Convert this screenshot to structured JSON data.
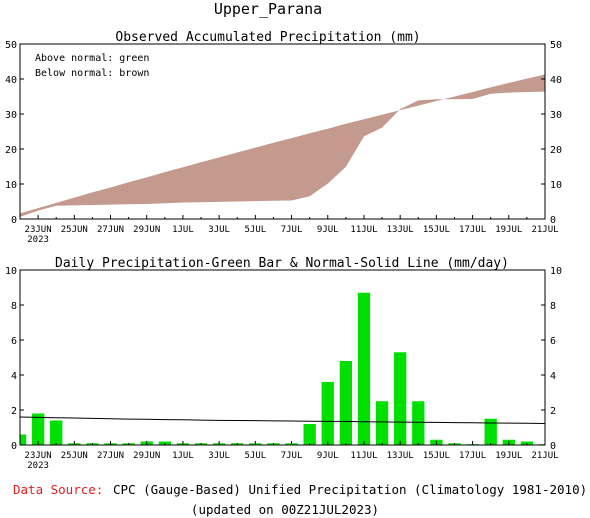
{
  "title": "Upper_Parana",
  "footer": {
    "source_label": "Data Source:",
    "source_text": "CPC (Gauge-Based) Unified Precipitation (Climatology 1981-2010)",
    "updated": "(updated on 00Z21JUL2023)"
  },
  "colors": {
    "shade": "#c49a8e",
    "bar": "#00e000",
    "source_label": "#e02020"
  },
  "x_axis": {
    "start_date": "2023-06-22",
    "tick_labels": [
      "23JUN",
      "25JUN",
      "27JUN",
      "29JUN",
      "1JUL",
      "3JUL",
      "5JUL",
      "7JUL",
      "9JUL",
      "11JUL",
      "13JUL",
      "15JUL",
      "17JUL",
      "19JUL",
      "21JUL"
    ],
    "year_label": "2023"
  },
  "chart_data": [
    {
      "type": "area",
      "title": "Observed Accumulated Precipitation (mm)",
      "legend": [
        "Above normal: green",
        "Below normal: brown"
      ],
      "ylim": [
        0,
        50
      ],
      "yticks": [
        0,
        10,
        20,
        30,
        40,
        50
      ],
      "x": [
        "22JUN",
        "23JUN",
        "24JUN",
        "25JUN",
        "26JUN",
        "27JUN",
        "28JUN",
        "29JUN",
        "30JUN",
        "1JUL",
        "2JUL",
        "3JUL",
        "4JUL",
        "5JUL",
        "6JUL",
        "7JUL",
        "8JUL",
        "9JUL",
        "10JUL",
        "11JUL",
        "12JUL",
        "13JUL",
        "14JUL",
        "15JUL",
        "16JUL",
        "17JUL",
        "18JUL",
        "19JUL",
        "20JUL",
        "21JUL"
      ],
      "series": [
        {
          "name": "observed",
          "values": [
            0.6,
            2.4,
            3.8,
            3.9,
            4.0,
            4.1,
            4.2,
            4.3,
            4.5,
            4.7,
            4.8,
            4.9,
            5.0,
            5.1,
            5.2,
            5.3,
            6.5,
            10.1,
            14.9,
            23.6,
            26.1,
            31.4,
            33.9,
            34.2,
            34.2,
            34.3,
            35.8,
            36.1,
            36.3,
            36.4
          ]
        },
        {
          "name": "normal",
          "values": [
            1.6,
            3.1,
            4.6,
            6.1,
            7.6,
            9.0,
            10.5,
            11.9,
            13.4,
            14.8,
            16.2,
            17.6,
            19.0,
            20.4,
            21.8,
            23.1,
            24.5,
            25.8,
            27.2,
            28.5,
            29.8,
            31.1,
            32.4,
            33.7,
            35.0,
            36.3,
            37.6,
            38.9,
            40.1,
            41.3
          ]
        }
      ]
    },
    {
      "type": "bar",
      "title": "Daily Precipitation-Green Bar & Normal-Solid Line (mm/day)",
      "ylim": [
        0,
        10
      ],
      "yticks": [
        0,
        2,
        4,
        6,
        8,
        10
      ],
      "x": [
        "22JUN",
        "23JUN",
        "24JUN",
        "25JUN",
        "26JUN",
        "27JUN",
        "28JUN",
        "29JUN",
        "30JUN",
        "1JUL",
        "2JUL",
        "3JUL",
        "4JUL",
        "5JUL",
        "6JUL",
        "7JUL",
        "8JUL",
        "9JUL",
        "10JUL",
        "11JUL",
        "12JUL",
        "13JUL",
        "14JUL",
        "15JUL",
        "16JUL",
        "17JUL",
        "18JUL",
        "19JUL",
        "20JUL",
        "21JUL"
      ],
      "series": [
        {
          "name": "daily",
          "values": [
            0.6,
            1.8,
            1.4,
            0.1,
            0.1,
            0.1,
            0.1,
            0.2,
            0.2,
            0.1,
            0.1,
            0.1,
            0.1,
            0.1,
            0.1,
            0.1,
            1.2,
            3.6,
            4.8,
            8.7,
            2.5,
            5.3,
            2.5,
            0.3,
            0.1,
            0.05,
            1.5,
            0.3,
            0.2,
            0.05
          ]
        },
        {
          "name": "normal",
          "values": [
            1.6,
            1.58,
            1.56,
            1.54,
            1.52,
            1.5,
            1.48,
            1.47,
            1.45,
            1.44,
            1.42,
            1.41,
            1.4,
            1.39,
            1.38,
            1.37,
            1.36,
            1.35,
            1.34,
            1.33,
            1.32,
            1.31,
            1.3,
            1.29,
            1.28,
            1.27,
            1.26,
            1.25,
            1.24,
            1.23
          ]
        }
      ]
    }
  ]
}
